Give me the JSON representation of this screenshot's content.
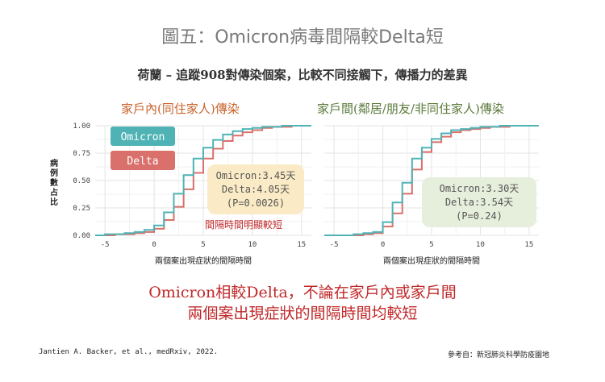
{
  "figure_title": "圖五：Omicron病毒間隔較Delta短",
  "subtitle": "荷蘭  –  追蹤908對傳染個案，比較不同接觸下，傳播力的差異",
  "y_axis_label": "病例數占比",
  "conclusion_line1": "Omicron相較Delta，不論在家戶內或家戶間",
  "conclusion_line2": "兩個案出現症狀的間隔時間均較短",
  "citation": "Jantien A. Backer, et al., medRxiv, 2022.",
  "reference": "參考自：新冠肺炎科學防疫園地",
  "colors": {
    "omicron": "#4fb3b5",
    "delta": "#d9706b",
    "left_box": "#faebc6",
    "right_box": "#e6eedc"
  },
  "chart_data": [
    {
      "type": "line",
      "step": true,
      "title": "家戶內(同住家人)傳染",
      "xlabel": "兩個案出現症狀的間隔時間",
      "ylabel": "病例數占比",
      "xlim": [
        -6,
        16
      ],
      "ylim": [
        0,
        1.0
      ],
      "xticks": [
        "-5",
        "0",
        "5",
        "10",
        "15"
      ],
      "yticks": [
        "0.00",
        "0.25",
        "0.50",
        "0.75",
        "1.00"
      ],
      "grid": true,
      "legend_position": "top-left",
      "series": [
        {
          "name": "Omicron",
          "x": [
            -6,
            -5,
            -4,
            -3,
            -2,
            -1,
            0,
            1,
            2,
            3,
            4,
            5,
            6,
            7,
            8,
            9,
            10,
            11,
            12,
            13,
            14,
            15
          ],
          "y": [
            0.0,
            0.01,
            0.01,
            0.02,
            0.03,
            0.05,
            0.09,
            0.21,
            0.38,
            0.55,
            0.7,
            0.8,
            0.87,
            0.92,
            0.95,
            0.97,
            0.98,
            0.99,
            0.99,
            1.0,
            1.0,
            1.0
          ]
        },
        {
          "name": "Delta",
          "x": [
            -6,
            -5,
            -4,
            -3,
            -2,
            -1,
            0,
            1,
            2,
            3,
            4,
            5,
            6,
            7,
            8,
            9,
            10,
            11,
            12,
            13,
            14,
            15
          ],
          "y": [
            0.0,
            0.0,
            0.01,
            0.01,
            0.02,
            0.03,
            0.06,
            0.14,
            0.26,
            0.42,
            0.57,
            0.7,
            0.79,
            0.86,
            0.91,
            0.94,
            0.96,
            0.98,
            0.99,
            0.99,
            1.0,
            1.0
          ]
        }
      ],
      "annotation": {
        "omicron": "Omicron:3.45天",
        "delta": "Delta:4.05天",
        "p": "(P=0.0026)",
        "note": "間隔時間明顯較短"
      }
    },
    {
      "type": "line",
      "step": true,
      "title": "家戶間(鄰居/朋友/非同住家人)傳染",
      "xlabel": "兩個案出現症狀的間隔時間",
      "ylabel": "",
      "xlim": [
        -6,
        16
      ],
      "ylim": [
        0,
        1.0
      ],
      "xticks": [
        "-5",
        "0",
        "5",
        "10",
        "15"
      ],
      "grid": true,
      "series": [
        {
          "name": "Omicron",
          "x": [
            -6,
            -5,
            -4,
            -3,
            -2,
            -1,
            0,
            1,
            2,
            3,
            4,
            5,
            6,
            7,
            8,
            9,
            10,
            11,
            12,
            13,
            14,
            15
          ],
          "y": [
            0.0,
            0.0,
            0.0,
            0.01,
            0.02,
            0.03,
            0.12,
            0.3,
            0.48,
            0.7,
            0.8,
            0.88,
            0.93,
            0.96,
            0.97,
            0.98,
            0.99,
            0.99,
            1.0,
            1.0,
            1.0,
            1.0
          ]
        },
        {
          "name": "Delta",
          "x": [
            -6,
            -5,
            -4,
            -3,
            -2,
            -1,
            0,
            1,
            2,
            3,
            4,
            5,
            6,
            7,
            8,
            9,
            10,
            11,
            12,
            13,
            14,
            15
          ],
          "y": [
            0.0,
            0.0,
            0.0,
            0.0,
            0.01,
            0.02,
            0.08,
            0.2,
            0.38,
            0.6,
            0.76,
            0.85,
            0.9,
            0.94,
            0.96,
            0.97,
            0.98,
            0.99,
            0.99,
            1.0,
            1.0,
            1.0
          ]
        }
      ],
      "annotation": {
        "omicron": "Omicron:3.30天",
        "delta": "Delta:3.54天",
        "p": "(P=0.24)"
      }
    }
  ]
}
